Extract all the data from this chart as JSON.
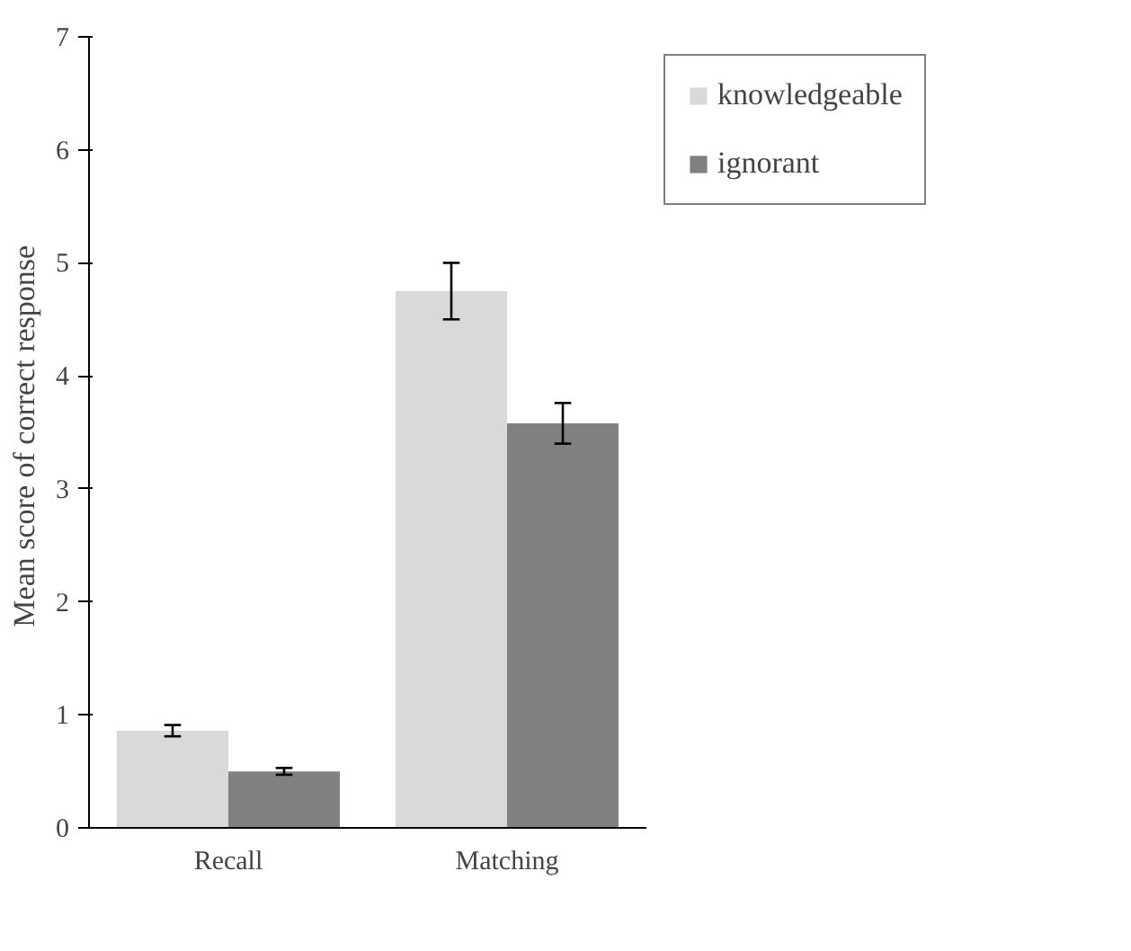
{
  "chart_data": {
    "type": "bar",
    "ylabel": "Mean score  of correct response",
    "categories": [
      "Recall",
      "Matching"
    ],
    "series": [
      {
        "name": "knowledgeable",
        "color": "#d9d9d9",
        "values": [
          0.86,
          4.75
        ],
        "errors": [
          0.05,
          0.25
        ]
      },
      {
        "name": "ignorant",
        "color": "#808080",
        "values": [
          0.5,
          3.58
        ],
        "errors": [
          0.03,
          0.18
        ]
      }
    ],
    "ylim": [
      0,
      7
    ],
    "yticks": [
      0,
      1,
      2,
      3,
      4,
      5,
      6,
      7
    ],
    "grid": false,
    "legend": "top right"
  }
}
